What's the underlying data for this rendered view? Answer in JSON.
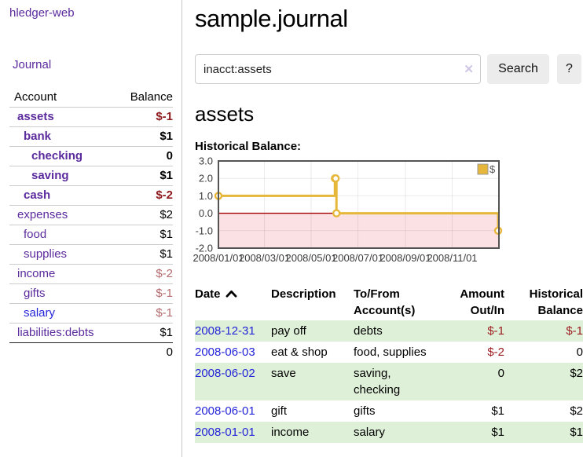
{
  "app": {
    "title": "hledger-web"
  },
  "colors": {
    "purple": "#5b2a9d",
    "blue": "#2424d8",
    "neg_strong": "#8e191c",
    "neg_weak": "#b56a6e",
    "neg_table": "#9b1c1f",
    "row_green": "#dff0d8",
    "btn_bg": "#ececec",
    "chart_line": "#e6b73a",
    "chart_pink": "#fbe1e3",
    "chart_zero": "#a40000",
    "chart_border": "#545454"
  },
  "sidebar": {
    "journal_link": "Journal",
    "account_header": "Account",
    "balance_header": "Balance",
    "accounts": [
      {
        "name": "assets",
        "depth": 0,
        "bold": true,
        "balance": "$-1",
        "neg": "strong"
      },
      {
        "name": "bank",
        "depth": 1,
        "bold": true,
        "balance": "$1"
      },
      {
        "name": "checking",
        "depth": 2,
        "bold": true,
        "balance": "0"
      },
      {
        "name": "saving",
        "depth": 2,
        "bold": true,
        "balance": "$1"
      },
      {
        "name": "cash",
        "depth": 1,
        "bold": true,
        "balance": "$-2",
        "neg": "strong"
      },
      {
        "name": "expenses",
        "depth": 0,
        "bold": false,
        "balance": "$2"
      },
      {
        "name": "food",
        "depth": 1,
        "bold": false,
        "balance": "$1"
      },
      {
        "name": "supplies",
        "depth": 1,
        "bold": false,
        "balance": "$1"
      },
      {
        "name": "income",
        "depth": 0,
        "bold": false,
        "balance": "$-2",
        "neg": "weak"
      },
      {
        "name": "gifts",
        "depth": 1,
        "bold": false,
        "balance": "$-1",
        "neg": "weak"
      },
      {
        "name": "salary",
        "depth": 1,
        "bold": false,
        "balance": "$-1",
        "neg": "weak",
        "link": "blue"
      },
      {
        "name": "liabilities:debts",
        "depth": 0,
        "bold": false,
        "balance": "$1"
      }
    ],
    "total": "0"
  },
  "main": {
    "title": "sample.journal",
    "search": {
      "value": "inacct:assets",
      "clear_icon": "✕",
      "button": "Search",
      "help_button": "?"
    },
    "account_heading": "assets",
    "chart_label": "Historical Balance:"
  },
  "chart_data": {
    "type": "line",
    "title": "Historical Balance:",
    "step": true,
    "legend": {
      "label": "$",
      "position": "top-right"
    },
    "ylim": [
      -2,
      3
    ],
    "xlim_days": [
      0,
      366
    ],
    "y_tick_labels": [
      "3.0",
      "2.0",
      "1.0",
      "0.0",
      "-1.0",
      "-2.0"
    ],
    "y_ticks": [
      3.0,
      2.0,
      1.0,
      0.0,
      -1.0,
      -2.0
    ],
    "x_ticks": [
      {
        "label": "2008/01/01",
        "day": 0
      },
      {
        "label": "2008/03/01",
        "day": 60
      },
      {
        "label": "2008/05/01",
        "day": 121
      },
      {
        "label": "2008/07/01",
        "day": 182
      },
      {
        "label": "2008/09/01",
        "day": 244
      },
      {
        "label": "2008/11/01",
        "day": 305
      }
    ],
    "series": [
      {
        "name": "$",
        "points": [
          {
            "date": "2008-01-01",
            "day": 0,
            "value": 1
          },
          {
            "date": "2008-06-01",
            "day": 152,
            "value": 2
          },
          {
            "date": "2008-06-02",
            "day": 153,
            "value": 2
          },
          {
            "date": "2008-06-03",
            "day": 154,
            "value": 0
          },
          {
            "date": "2008-12-31",
            "day": 365,
            "value": -1
          }
        ]
      }
    ]
  },
  "register": {
    "headers": [
      "Date",
      "Description",
      "To/From\nAccount(s)",
      "Amount\nOut/In",
      "Historical\nBalance"
    ],
    "rows": [
      {
        "date": "2008-12-31",
        "description": "pay off",
        "accounts": "debts",
        "amount": "$-1",
        "amount_neg": true,
        "balance": "$-1",
        "balance_neg": true
      },
      {
        "date": "2008-06-03",
        "description": "eat & shop",
        "accounts": "food, supplies",
        "amount": "$-2",
        "amount_neg": true,
        "balance": "0",
        "balance_neg": false
      },
      {
        "date": "2008-06-02",
        "description": "save",
        "accounts": "saving,\nchecking",
        "amount": "0",
        "amount_neg": false,
        "balance": "$2",
        "balance_neg": false
      },
      {
        "date": "2008-06-01",
        "description": "gift",
        "accounts": "gifts",
        "amount": "$1",
        "amount_neg": false,
        "balance": "$2",
        "balance_neg": false
      },
      {
        "date": "2008-01-01",
        "description": "income",
        "accounts": "salary",
        "amount": "$1",
        "amount_neg": false,
        "balance": "$1",
        "balance_neg": false
      }
    ]
  }
}
